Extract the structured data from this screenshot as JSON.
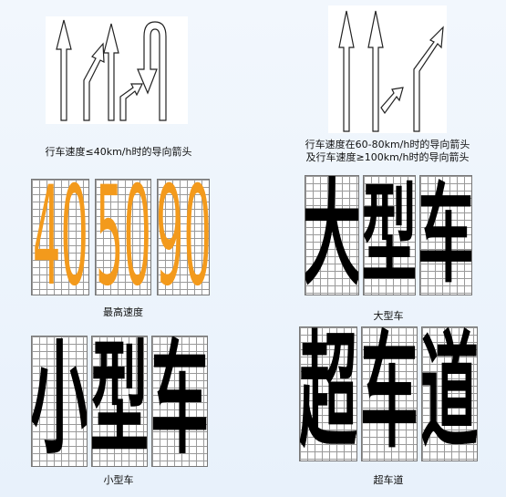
{
  "panels": {
    "arrows_low": {
      "caption": "行车速度≤40km/h时的导向箭头"
    },
    "arrows_high": {
      "caption_line1": "行车速度在60-80km/h时的导向箭头",
      "caption_line2": "及行车速度≥100km/h时的导向箭头"
    },
    "max_speed": {
      "digits": [
        "40",
        "50",
        "90"
      ],
      "caption": "最高速度"
    },
    "large_vehicle": {
      "chars": [
        "大",
        "型",
        "车"
      ],
      "caption": "大型车"
    },
    "small_vehicle": {
      "chars": [
        "小",
        "型",
        "车"
      ],
      "caption": "小型车"
    },
    "overtaking_lane": {
      "chars": [
        "超",
        "车",
        "道"
      ],
      "caption": "超车道"
    }
  },
  "colors": {
    "digit": "#f39a1c",
    "char": "#000000",
    "grid": "#9a9a9a",
    "background": "#eef5fc"
  }
}
